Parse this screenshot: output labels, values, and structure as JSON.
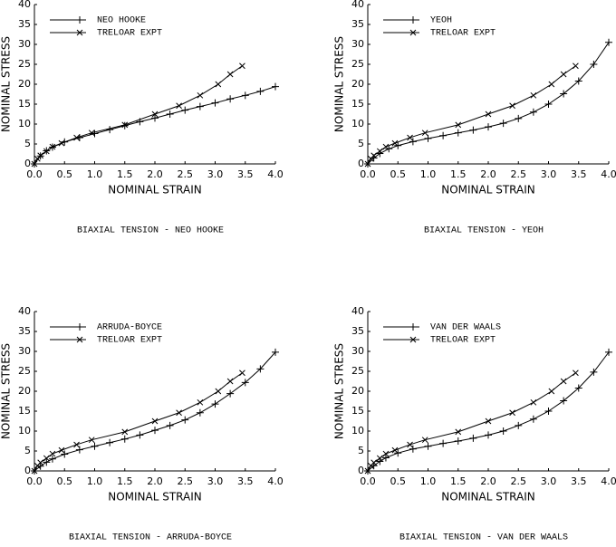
{
  "chart_data": [
    {
      "type": "line",
      "title": "BIAXIAL TENSION - NEO HOOKE",
      "x_label": "NOMINAL STRAIN",
      "y_label": "NOMINAL STRESS",
      "xlim": [
        0,
        4
      ],
      "ylim": [
        0,
        40
      ],
      "xticks": [
        {
          "value": 0,
          "label": "0.0"
        },
        0.5,
        {
          "value": 1,
          "label": "1.0"
        },
        1.5,
        {
          "value": 2,
          "label": "2.0"
        },
        2.5,
        {
          "value": 3,
          "label": "3.0"
        },
        3.5,
        {
          "value": 4,
          "label": "4.0"
        }
      ],
      "yticks": [
        0,
        5,
        10,
        15,
        20,
        25,
        30,
        35,
        40
      ],
      "series": [
        {
          "name": "NEO HOOKE",
          "color": "#000000",
          "marker": "plus",
          "x": [
            0,
            0.1,
            0.2,
            0.3,
            0.5,
            0.75,
            1.0,
            1.25,
            1.5,
            1.75,
            2.0,
            2.25,
            2.5,
            2.75,
            3.0,
            3.25,
            3.5,
            3.75,
            4.0
          ],
          "values": [
            0,
            2.0,
            3.3,
            4.2,
            5.5,
            6.6,
            7.6,
            8.6,
            9.6,
            10.6,
            11.5,
            12.5,
            13.5,
            14.4,
            15.3,
            16.3,
            17.2,
            18.2,
            19.4
          ]
        },
        {
          "name": "TRELOAR EXPT",
          "color": "#000000",
          "marker": "cross",
          "x": [
            0,
            0.05,
            0.1,
            0.2,
            0.3,
            0.45,
            0.7,
            0.95,
            1.5,
            2.0,
            2.4,
            2.75,
            3.05,
            3.25,
            3.45
          ],
          "values": [
            0,
            1.3,
            2.1,
            3.2,
            4.3,
            5.2,
            6.6,
            7.8,
            9.8,
            12.5,
            14.6,
            17.2,
            20.0,
            22.5,
            24.6
          ]
        }
      ]
    },
    {
      "type": "line",
      "title": "BIAXIAL TENSION - YEOH",
      "x_label": "NOMINAL STRAIN",
      "y_label": "NOMINAL STRESS",
      "xlim": [
        0,
        4
      ],
      "ylim": [
        0,
        40
      ],
      "xticks": [
        {
          "value": 0,
          "label": "0.0"
        },
        0.5,
        {
          "value": 1,
          "label": "1.0"
        },
        1.5,
        {
          "value": 2,
          "label": "2.0"
        },
        2.5,
        {
          "value": 3,
          "label": "3.0"
        },
        3.5,
        {
          "value": 4,
          "label": "4.0"
        }
      ],
      "yticks": [
        0,
        5,
        10,
        15,
        20,
        25,
        30,
        35,
        40
      ],
      "series": [
        {
          "name": "YEOH",
          "color": "#000000",
          "marker": "plus",
          "x": [
            0,
            0.1,
            0.2,
            0.35,
            0.5,
            0.75,
            1.0,
            1.25,
            1.5,
            1.75,
            2.0,
            2.25,
            2.5,
            2.75,
            3.0,
            3.25,
            3.5,
            3.75,
            4.0
          ],
          "values": [
            0,
            1.5,
            2.6,
            3.8,
            4.6,
            5.6,
            6.4,
            7.1,
            7.8,
            8.5,
            9.3,
            10.2,
            11.4,
            13.0,
            15.0,
            17.6,
            20.8,
            25.0,
            30.5
          ]
        },
        {
          "name": "TRELOAR EXPT",
          "color": "#000000",
          "marker": "cross",
          "x": [
            0,
            0.05,
            0.1,
            0.2,
            0.3,
            0.45,
            0.7,
            0.95,
            1.5,
            2.0,
            2.4,
            2.75,
            3.05,
            3.25,
            3.45
          ],
          "values": [
            0,
            1.3,
            2.1,
            3.2,
            4.3,
            5.2,
            6.6,
            7.8,
            9.8,
            12.5,
            14.6,
            17.2,
            20.0,
            22.5,
            24.6
          ]
        }
      ]
    },
    {
      "type": "line",
      "title": "BIAXIAL TENSION - ARRUDA-BOYCE",
      "x_label": "NOMINAL STRAIN",
      "y_label": "NOMINAL STRESS",
      "xlim": [
        0,
        4
      ],
      "ylim": [
        0,
        40
      ],
      "xticks": [
        {
          "value": 0,
          "label": "0.0"
        },
        0.5,
        {
          "value": 1,
          "label": "1.0"
        },
        1.5,
        {
          "value": 2,
          "label": "2.0"
        },
        2.5,
        {
          "value": 3,
          "label": "3.0"
        },
        3.5,
        {
          "value": 4,
          "label": "4.0"
        }
      ],
      "yticks": [
        0,
        5,
        10,
        15,
        20,
        25,
        30,
        35,
        40
      ],
      "series": [
        {
          "name": "ARRUDA-BOYCE",
          "color": "#000000",
          "marker": "plus",
          "x": [
            0,
            0.1,
            0.2,
            0.3,
            0.5,
            0.75,
            1.0,
            1.25,
            1.5,
            1.75,
            2.0,
            2.25,
            2.5,
            2.75,
            3.0,
            3.25,
            3.5,
            3.75,
            4.0
          ],
          "values": [
            0,
            1.2,
            2.2,
            3.0,
            4.2,
            5.3,
            6.2,
            7.1,
            8.0,
            9.0,
            10.2,
            11.4,
            12.8,
            14.6,
            16.8,
            19.4,
            22.2,
            25.6,
            29.8
          ]
        },
        {
          "name": "TRELOAR EXPT",
          "color": "#000000",
          "marker": "cross",
          "x": [
            0,
            0.05,
            0.1,
            0.2,
            0.3,
            0.45,
            0.7,
            0.95,
            1.5,
            2.0,
            2.4,
            2.75,
            3.05,
            3.25,
            3.45
          ],
          "values": [
            0,
            1.3,
            2.1,
            3.2,
            4.3,
            5.2,
            6.6,
            7.8,
            9.8,
            12.5,
            14.6,
            17.2,
            20.0,
            22.5,
            24.6
          ]
        }
      ]
    },
    {
      "type": "line",
      "title": "BIAXIAL TENSION - VAN DER WAALS",
      "x_label": "NOMINAL STRAIN",
      "y_label": "NOMINAL STRESS",
      "xlim": [
        0,
        4
      ],
      "ylim": [
        0,
        40
      ],
      "xticks": [
        {
          "value": 0,
          "label": "0.0"
        },
        0.5,
        {
          "value": 1,
          "label": "1.0"
        },
        1.5,
        {
          "value": 2,
          "label": "2.0"
        },
        2.5,
        {
          "value": 3,
          "label": "3.0"
        },
        3.5,
        {
          "value": 4,
          "label": "4.0"
        }
      ],
      "yticks": [
        0,
        5,
        10,
        15,
        20,
        25,
        30,
        35,
        40
      ],
      "series": [
        {
          "name": "VAN DER WAALS",
          "color": "#000000",
          "marker": "plus",
          "x": [
            0,
            0.1,
            0.2,
            0.3,
            0.5,
            0.75,
            1.0,
            1.25,
            1.5,
            1.75,
            2.0,
            2.25,
            2.5,
            2.75,
            3.0,
            3.25,
            3.5,
            3.75,
            4.0
          ],
          "values": [
            0,
            1.3,
            2.4,
            3.3,
            4.5,
            5.5,
            6.2,
            6.9,
            7.5,
            8.2,
            9.0,
            10.0,
            11.4,
            13.0,
            15.0,
            17.6,
            20.8,
            24.8,
            29.8
          ]
        },
        {
          "name": "TRELOAR EXPT",
          "color": "#000000",
          "marker": "cross",
          "x": [
            0,
            0.05,
            0.1,
            0.2,
            0.3,
            0.45,
            0.7,
            0.95,
            1.5,
            2.0,
            2.4,
            2.75,
            3.05,
            3.25,
            3.45
          ],
          "values": [
            0,
            1.3,
            2.1,
            3.2,
            4.3,
            5.2,
            6.6,
            7.8,
            9.8,
            12.5,
            14.6,
            17.2,
            20.0,
            22.5,
            24.6
          ]
        }
      ]
    }
  ]
}
